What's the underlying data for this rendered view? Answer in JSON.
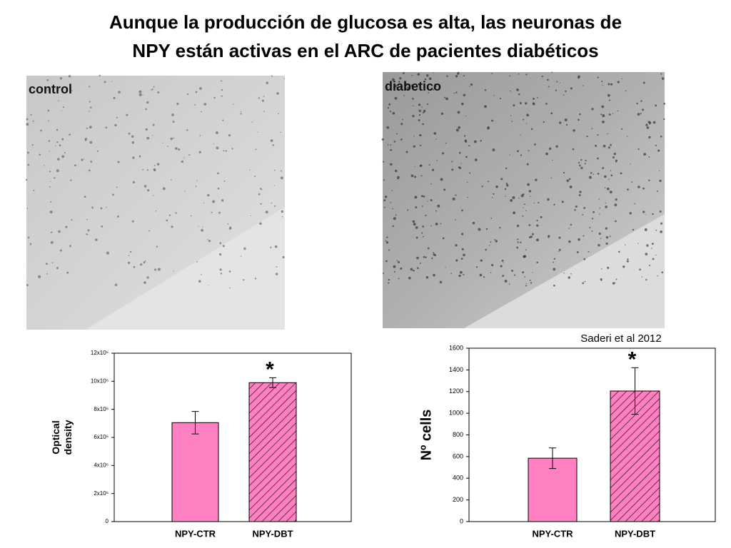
{
  "title": [
    "Aunque la producción de glucosa es alta, las neuronas de",
    "NPY están activas en el ARC  de pacientes diabéticos"
  ],
  "images": [
    {
      "label": "control"
    },
    {
      "label": "diabetico"
    }
  ],
  "citation": "Saderi et al 2012",
  "chart_data": [
    {
      "type": "bar",
      "ylabel": [
        "Optical",
        "density"
      ],
      "categories": [
        "NPY-CTR",
        "NPY-DBT"
      ],
      "values": [
        7050000,
        9900000
      ],
      "errors": [
        800000,
        350000
      ],
      "colors": [
        "#ff80c0",
        "#ff80c0"
      ],
      "hatched": [
        false,
        true
      ],
      "annotation": "*",
      "ylim": [
        0,
        12000000
      ],
      "yticks": [
        0,
        {
          "value": 2000000,
          "label": "2x10⁶"
        },
        {
          "value": 4000000,
          "label": "4x10⁶"
        },
        {
          "value": 6000000,
          "label": "6x10⁶"
        },
        {
          "value": 8000000,
          "label": "8x10⁶"
        },
        {
          "value": 10000000,
          "label": "10x10⁶"
        },
        {
          "value": 12000000,
          "label": "12x10⁶"
        }
      ]
    },
    {
      "type": "bar",
      "ylabel": [
        "Nº cells"
      ],
      "categories": [
        "NPY-CTR",
        "NPY-DBT"
      ],
      "values": [
        585,
        1205
      ],
      "errors": [
        95,
        215
      ],
      "colors": [
        "#ff80c0",
        "#ff80c0"
      ],
      "hatched": [
        false,
        true
      ],
      "annotation": "*",
      "ylim": [
        0,
        1600
      ],
      "yticks": [
        0,
        200,
        400,
        600,
        800,
        1000,
        1200,
        1400,
        1600
      ]
    }
  ]
}
